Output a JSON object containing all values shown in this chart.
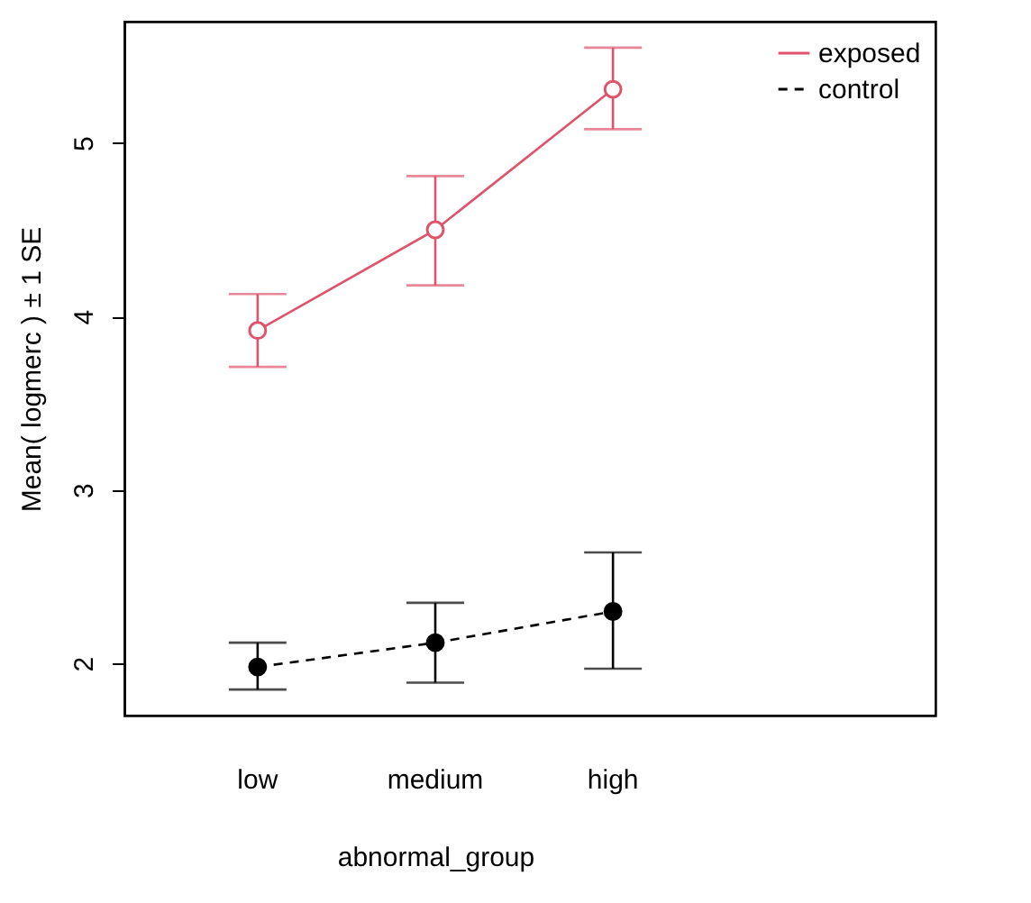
{
  "chart_data": {
    "type": "line",
    "xlabel": "abnormal_group",
    "ylabel": "Mean( logmerc ) ± 1 SE",
    "categories": [
      "low",
      "medium",
      "high"
    ],
    "series": [
      {
        "name": "exposed",
        "color": "#df536b",
        "values": [
          3.92,
          4.5,
          5.31
        ],
        "errors": [
          [
            3.71,
            4.13
          ],
          [
            4.18,
            4.81
          ],
          [
            5.08,
            5.55
          ]
        ],
        "line_style": "solid"
      },
      {
        "name": "control",
        "color": "#000000",
        "values": [
          1.98,
          2.12,
          2.3
        ],
        "errors": [
          [
            1.85,
            2.12
          ],
          [
            1.89,
            2.35
          ],
          [
            1.97,
            2.64
          ]
        ],
        "line_style": "dashed"
      }
    ],
    "ylim": [
      1.7,
      5.7
    ],
    "yticks": [
      {
        "value": 2,
        "label": "2"
      },
      {
        "value": 3,
        "label": "3"
      },
      {
        "value": 4,
        "label": "4"
      },
      {
        "value": 5,
        "label": "5"
      }
    ],
    "grid": false,
    "legend": "top right",
    "marker": "circle"
  }
}
